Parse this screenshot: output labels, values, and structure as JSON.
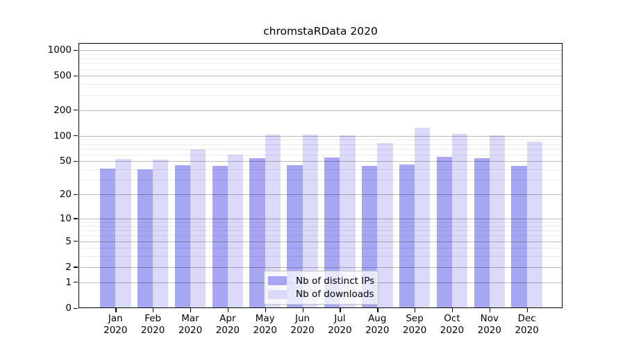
{
  "title": "chromstaRData 2020",
  "chart_data": {
    "type": "bar",
    "title": "chromstaRData 2020",
    "categories": [
      "Jan 2020",
      "Feb 2020",
      "Mar 2020",
      "Apr 2020",
      "May 2020",
      "Jun 2020",
      "Jul 2020",
      "Aug 2020",
      "Sep 2020",
      "Oct 2020",
      "Nov 2020",
      "Dec 2020"
    ],
    "category_months": [
      "Jan",
      "Feb",
      "Mar",
      "Apr",
      "May",
      "Jun",
      "Jul",
      "Aug",
      "Sep",
      "Oct",
      "Nov",
      "Dec"
    ],
    "category_year": "2020",
    "series": [
      {
        "name": "Nb of distinct IPs",
        "color": "#a6a6f2",
        "values": [
          41,
          40,
          45,
          44,
          54,
          45,
          55,
          44,
          46,
          56,
          54,
          44
        ]
      },
      {
        "name": "Nb of downloads",
        "color": "#dadaf8",
        "values": [
          53,
          52,
          70,
          60,
          104,
          103,
          101,
          83,
          125,
          105,
          102,
          86
        ]
      }
    ],
    "xlabel": "",
    "ylabel": "",
    "y_scale": "log10(1+x)",
    "ylim": [
      0,
      1000
    ],
    "y_tick_values": [
      0,
      1,
      2,
      5,
      10,
      20,
      50,
      100,
      200,
      500,
      1000
    ],
    "y_tick_labels": [
      "0",
      "1",
      "2",
      "5",
      "10",
      "20",
      "50",
      "100",
      "200",
      "500",
      "1000"
    ],
    "minor_grid_values": [
      3,
      4,
      6,
      7,
      8,
      9,
      30,
      40,
      60,
      70,
      80,
      90,
      300,
      400,
      600,
      700,
      800,
      900
    ],
    "grid": true,
    "legend_position": "bottom-center"
  },
  "colors": {
    "ips_bar": "#a6a6f2",
    "downloads_bar": "#dadaf8",
    "major_grid": "rgba(0,0,0,0.27)",
    "minor_grid": "rgba(0,0,0,0.08)",
    "axis": "#000000",
    "legend_border": "#bfbfbf"
  }
}
